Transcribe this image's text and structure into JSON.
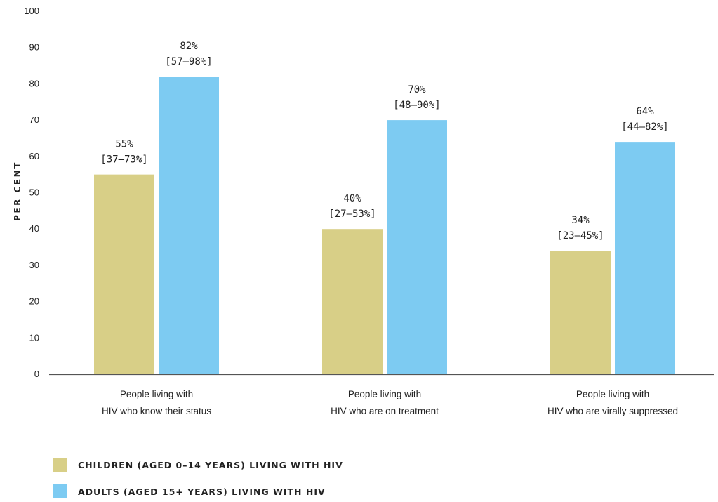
{
  "chart_data": {
    "type": "bar",
    "ylabel": "PER CENT",
    "xlabel": "",
    "ylim": [
      0,
      100
    ],
    "yticks": [
      0,
      10,
      20,
      30,
      40,
      50,
      60,
      70,
      80,
      90,
      100
    ],
    "grid": false,
    "legend_position": "bottom-left",
    "categories": [
      [
        "People living with",
        "HIV who know their status"
      ],
      [
        "People living with",
        "HIV who are on treatment"
      ],
      [
        "People living with",
        "HIV who are virally suppressed"
      ]
    ],
    "series": [
      {
        "name": "CHILDREN (AGED 0–14 YEARS) LIVING WITH HIV",
        "color": "#d8cf87",
        "values": [
          55,
          40,
          34
        ],
        "labels": [
          [
            "55%",
            "[37–73%]"
          ],
          [
            "40%",
            "[27–53%]"
          ],
          [
            "34%",
            "[23–45%]"
          ]
        ]
      },
      {
        "name": "ADULTS (AGED 15+ YEARS) LIVING WITH HIV",
        "color": "#7dcbf2",
        "values": [
          82,
          70,
          64
        ],
        "labels": [
          [
            "82%",
            "[57–98%]"
          ],
          [
            "70%",
            "[48–90%]"
          ],
          [
            "64%",
            "[44–82%]"
          ]
        ]
      }
    ]
  }
}
